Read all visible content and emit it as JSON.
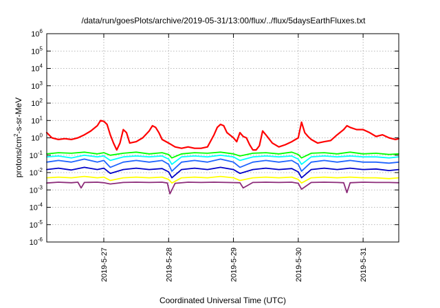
{
  "chart_data": {
    "type": "line",
    "title": "/data/run/goesPlots/archive/2019-05-31/13:00/flux/../flux/5daysEarthFluxes.txt",
    "xlabel": "Coordinated Universal Time (UTC)",
    "ylabel": {
      "prefix": "protons/cm",
      "superscript": "2",
      "suffix": "-s-sr-MeV"
    },
    "yscale": "log",
    "ylim": [
      1e-06,
      1000000.0
    ],
    "y_ticks": [
      {
        "base": "10",
        "exp": "6"
      },
      {
        "base": "10",
        "exp": "5"
      },
      {
        "base": "10",
        "exp": "4"
      },
      {
        "base": "10",
        "exp": "3"
      },
      {
        "base": "10",
        "exp": "2"
      },
      {
        "base": "10",
        "exp": "1"
      },
      {
        "base": "10",
        "exp": "0"
      },
      {
        "base": "10",
        "exp": "-1"
      },
      {
        "base": "10",
        "exp": "-2"
      },
      {
        "base": "10",
        "exp": "-3"
      },
      {
        "base": "10",
        "exp": "-4"
      },
      {
        "base": "10",
        "exp": "-5"
      },
      {
        "base": "10",
        "exp": "-6"
      }
    ],
    "xlim": [
      26.12,
      31.55
    ],
    "x_ticks": [
      {
        "label": "2019-5-27",
        "value": 27
      },
      {
        "label": "2019-5-28",
        "value": 28
      },
      {
        "label": "2019-5-29",
        "value": 29
      },
      {
        "label": "2019-5-30",
        "value": 30
      },
      {
        "label": "2019-5-31",
        "value": 31
      }
    ],
    "grid": true,
    "series": [
      {
        "color": "#ff0000",
        "x": [
          26.12,
          26.2,
          26.3,
          26.4,
          26.5,
          26.6,
          26.7,
          26.8,
          26.9,
          26.95,
          27.0,
          27.05,
          27.1,
          27.15,
          27.2,
          27.25,
          27.3,
          27.35,
          27.4,
          27.5,
          27.6,
          27.7,
          27.75,
          27.8,
          27.85,
          27.9,
          28.0,
          28.1,
          28.2,
          28.3,
          28.4,
          28.5,
          28.6,
          28.7,
          28.75,
          28.8,
          28.85,
          28.9,
          29.0,
          29.05,
          29.1,
          29.15,
          29.2,
          29.25,
          29.3,
          29.35,
          29.4,
          29.45,
          29.5,
          29.6,
          29.7,
          29.8,
          29.9,
          30.0,
          30.05,
          30.1,
          30.15,
          30.2,
          30.3,
          30.4,
          30.5,
          30.6,
          30.7,
          30.75,
          30.8,
          30.9,
          31.0,
          31.1,
          31.2,
          31.3,
          31.4,
          31.5,
          31.55
        ],
        "y": [
          2.0,
          1.0,
          0.8,
          0.9,
          0.8,
          1.0,
          1.5,
          2.5,
          5.0,
          10,
          9,
          6,
          1.5,
          0.5,
          0.2,
          0.5,
          3,
          2,
          0.5,
          0.6,
          1.0,
          2.5,
          5.0,
          4.0,
          2.0,
          0.8,
          0.5,
          0.3,
          0.25,
          0.3,
          0.25,
          0.25,
          0.3,
          1.5,
          4.0,
          6.0,
          5.0,
          2.0,
          1.0,
          0.6,
          2.0,
          1.2,
          1.0,
          0.4,
          0.2,
          0.2,
          0.35,
          2.5,
          1.5,
          0.5,
          0.3,
          0.4,
          0.6,
          1.0,
          8.0,
          2.0,
          1.2,
          0.8,
          0.5,
          0.6,
          0.7,
          1.5,
          3.0,
          5.0,
          4.0,
          3.0,
          3.0,
          2.0,
          1.2,
          1.5,
          1.0,
          0.8,
          0.9
        ]
      },
      {
        "color": "#00ff00",
        "x": [
          26.12,
          26.3,
          26.5,
          26.7,
          26.9,
          27.0,
          27.1,
          27.3,
          27.5,
          27.7,
          27.9,
          28.0,
          28.05,
          28.2,
          28.4,
          28.6,
          28.8,
          29.0,
          29.1,
          29.3,
          29.5,
          29.7,
          29.9,
          30.0,
          30.05,
          30.2,
          30.4,
          30.6,
          30.8,
          31.0,
          31.2,
          31.4,
          31.55
        ],
        "y": [
          0.12,
          0.14,
          0.13,
          0.15,
          0.12,
          0.14,
          0.1,
          0.13,
          0.15,
          0.12,
          0.14,
          0.11,
          0.07,
          0.12,
          0.14,
          0.13,
          0.15,
          0.12,
          0.09,
          0.13,
          0.14,
          0.12,
          0.15,
          0.11,
          0.07,
          0.13,
          0.14,
          0.12,
          0.15,
          0.12,
          0.13,
          0.11,
          0.12
        ]
      },
      {
        "color": "#00ffff",
        "x": [
          26.12,
          26.3,
          26.5,
          26.7,
          26.9,
          27.0,
          27.1,
          27.3,
          27.5,
          27.7,
          27.9,
          28.0,
          28.05,
          28.2,
          28.4,
          28.6,
          28.8,
          29.0,
          29.1,
          29.3,
          29.5,
          29.7,
          29.9,
          30.0,
          30.05,
          30.2,
          30.4,
          30.6,
          30.8,
          31.0,
          31.2,
          31.4,
          31.55
        ],
        "y": [
          0.08,
          0.09,
          0.07,
          0.1,
          0.08,
          0.09,
          0.05,
          0.08,
          0.09,
          0.08,
          0.09,
          0.06,
          0.03,
          0.08,
          0.09,
          0.08,
          0.1,
          0.08,
          0.05,
          0.08,
          0.09,
          0.08,
          0.09,
          0.06,
          0.03,
          0.08,
          0.09,
          0.08,
          0.09,
          0.08,
          0.08,
          0.07,
          0.08
        ]
      },
      {
        "color": "#1e64ff",
        "x": [
          26.12,
          26.3,
          26.5,
          26.7,
          26.9,
          27.0,
          27.1,
          27.3,
          27.5,
          27.7,
          27.9,
          28.0,
          28.05,
          28.2,
          28.4,
          28.6,
          28.8,
          29.0,
          29.1,
          29.3,
          29.5,
          29.7,
          29.9,
          30.0,
          30.05,
          30.2,
          30.4,
          30.6,
          30.8,
          31.0,
          31.2,
          31.4,
          31.55
        ],
        "y": [
          0.04,
          0.05,
          0.04,
          0.06,
          0.04,
          0.05,
          0.02,
          0.04,
          0.05,
          0.04,
          0.05,
          0.03,
          0.012,
          0.04,
          0.05,
          0.04,
          0.06,
          0.04,
          0.02,
          0.04,
          0.05,
          0.04,
          0.05,
          0.03,
          0.012,
          0.04,
          0.05,
          0.04,
          0.05,
          0.04,
          0.04,
          0.035,
          0.04
        ]
      },
      {
        "color": "#0000c8",
        "x": [
          26.12,
          26.3,
          26.5,
          26.7,
          26.9,
          27.0,
          27.1,
          27.3,
          27.5,
          27.7,
          27.9,
          28.0,
          28.05,
          28.2,
          28.4,
          28.6,
          28.8,
          29.0,
          29.1,
          29.3,
          29.5,
          29.7,
          29.9,
          30.0,
          30.05,
          30.2,
          30.4,
          30.6,
          30.8,
          31.0,
          31.2,
          31.4,
          31.55
        ],
        "y": [
          0.015,
          0.018,
          0.014,
          0.02,
          0.015,
          0.018,
          0.009,
          0.015,
          0.018,
          0.015,
          0.017,
          0.011,
          0.005,
          0.015,
          0.018,
          0.015,
          0.02,
          0.015,
          0.009,
          0.015,
          0.018,
          0.015,
          0.017,
          0.011,
          0.005,
          0.015,
          0.018,
          0.015,
          0.018,
          0.015,
          0.016,
          0.013,
          0.015
        ]
      },
      {
        "color": "#ffff00",
        "x": [
          26.12,
          26.3,
          26.5,
          26.7,
          26.9,
          27.0,
          27.1,
          27.3,
          27.5,
          27.7,
          27.9,
          28.0,
          28.05,
          28.2,
          28.4,
          28.6,
          28.8,
          29.0,
          29.1,
          29.3,
          29.5,
          29.7,
          29.9,
          30.0,
          30.05,
          30.2,
          30.4,
          30.6,
          30.8,
          31.0,
          31.2,
          31.4,
          31.55
        ],
        "y": [
          0.005,
          0.0055,
          0.005,
          0.006,
          0.005,
          0.0055,
          0.0035,
          0.005,
          0.0055,
          0.005,
          0.0055,
          0.004,
          0.0025,
          0.005,
          0.0055,
          0.005,
          0.006,
          0.005,
          0.0035,
          0.005,
          0.0055,
          0.005,
          0.0055,
          0.004,
          0.0025,
          0.005,
          0.0055,
          0.005,
          0.0055,
          0.005,
          0.005,
          0.0045,
          0.005
        ]
      },
      {
        "color": "#8b2a78",
        "x": [
          26.12,
          26.3,
          26.5,
          26.6,
          26.65,
          26.7,
          26.9,
          27.0,
          27.1,
          27.3,
          27.5,
          27.7,
          27.9,
          27.98,
          28.02,
          28.1,
          28.3,
          28.5,
          28.7,
          28.9,
          29.1,
          29.15,
          29.3,
          29.5,
          29.7,
          29.9,
          30.0,
          30.05,
          30.2,
          30.4,
          30.6,
          30.7,
          30.75,
          30.8,
          31.0,
          31.2,
          31.4,
          31.55
        ],
        "y": [
          0.0025,
          0.0028,
          0.0026,
          0.0028,
          0.0013,
          0.0027,
          0.0028,
          0.0026,
          0.0022,
          0.0027,
          0.0028,
          0.0027,
          0.0028,
          0.0025,
          0.0006,
          0.0024,
          0.0028,
          0.0027,
          0.0028,
          0.0027,
          0.0026,
          0.0013,
          0.0027,
          0.0028,
          0.0027,
          0.0028,
          0.0024,
          0.0011,
          0.0027,
          0.0028,
          0.0027,
          0.0026,
          0.0007,
          0.0026,
          0.0028,
          0.0027,
          0.0027,
          0.0026
        ]
      }
    ]
  }
}
